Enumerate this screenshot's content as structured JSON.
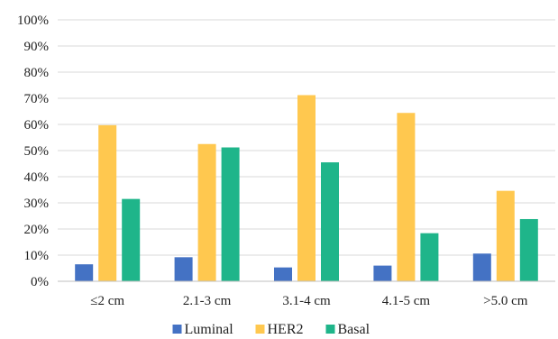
{
  "chart_data": {
    "type": "bar",
    "categories": [
      "≤2 cm",
      "2.1-3 cm",
      "3.1-4 cm",
      "4.1-5 cm",
      ">5.0 cm"
    ],
    "series": [
      {
        "name": "Luminal",
        "color": "#4472c4",
        "values": [
          6.5,
          9.2,
          5.3,
          6.0,
          10.6
        ]
      },
      {
        "name": "HER2",
        "color": "#ffc84f",
        "values": [
          59.7,
          52.5,
          71.2,
          64.4,
          34.6
        ]
      },
      {
        "name": "Basal",
        "color": "#1fb58a",
        "values": [
          31.5,
          51.2,
          45.5,
          18.4,
          23.8
        ]
      }
    ],
    "ylim": [
      0,
      100
    ],
    "yticks": [
      "0%",
      "10%",
      "20%",
      "30%",
      "40%",
      "50%",
      "60%",
      "70%",
      "80%",
      "90%",
      "100%"
    ],
    "grid": true,
    "legend_position": "bottom"
  }
}
